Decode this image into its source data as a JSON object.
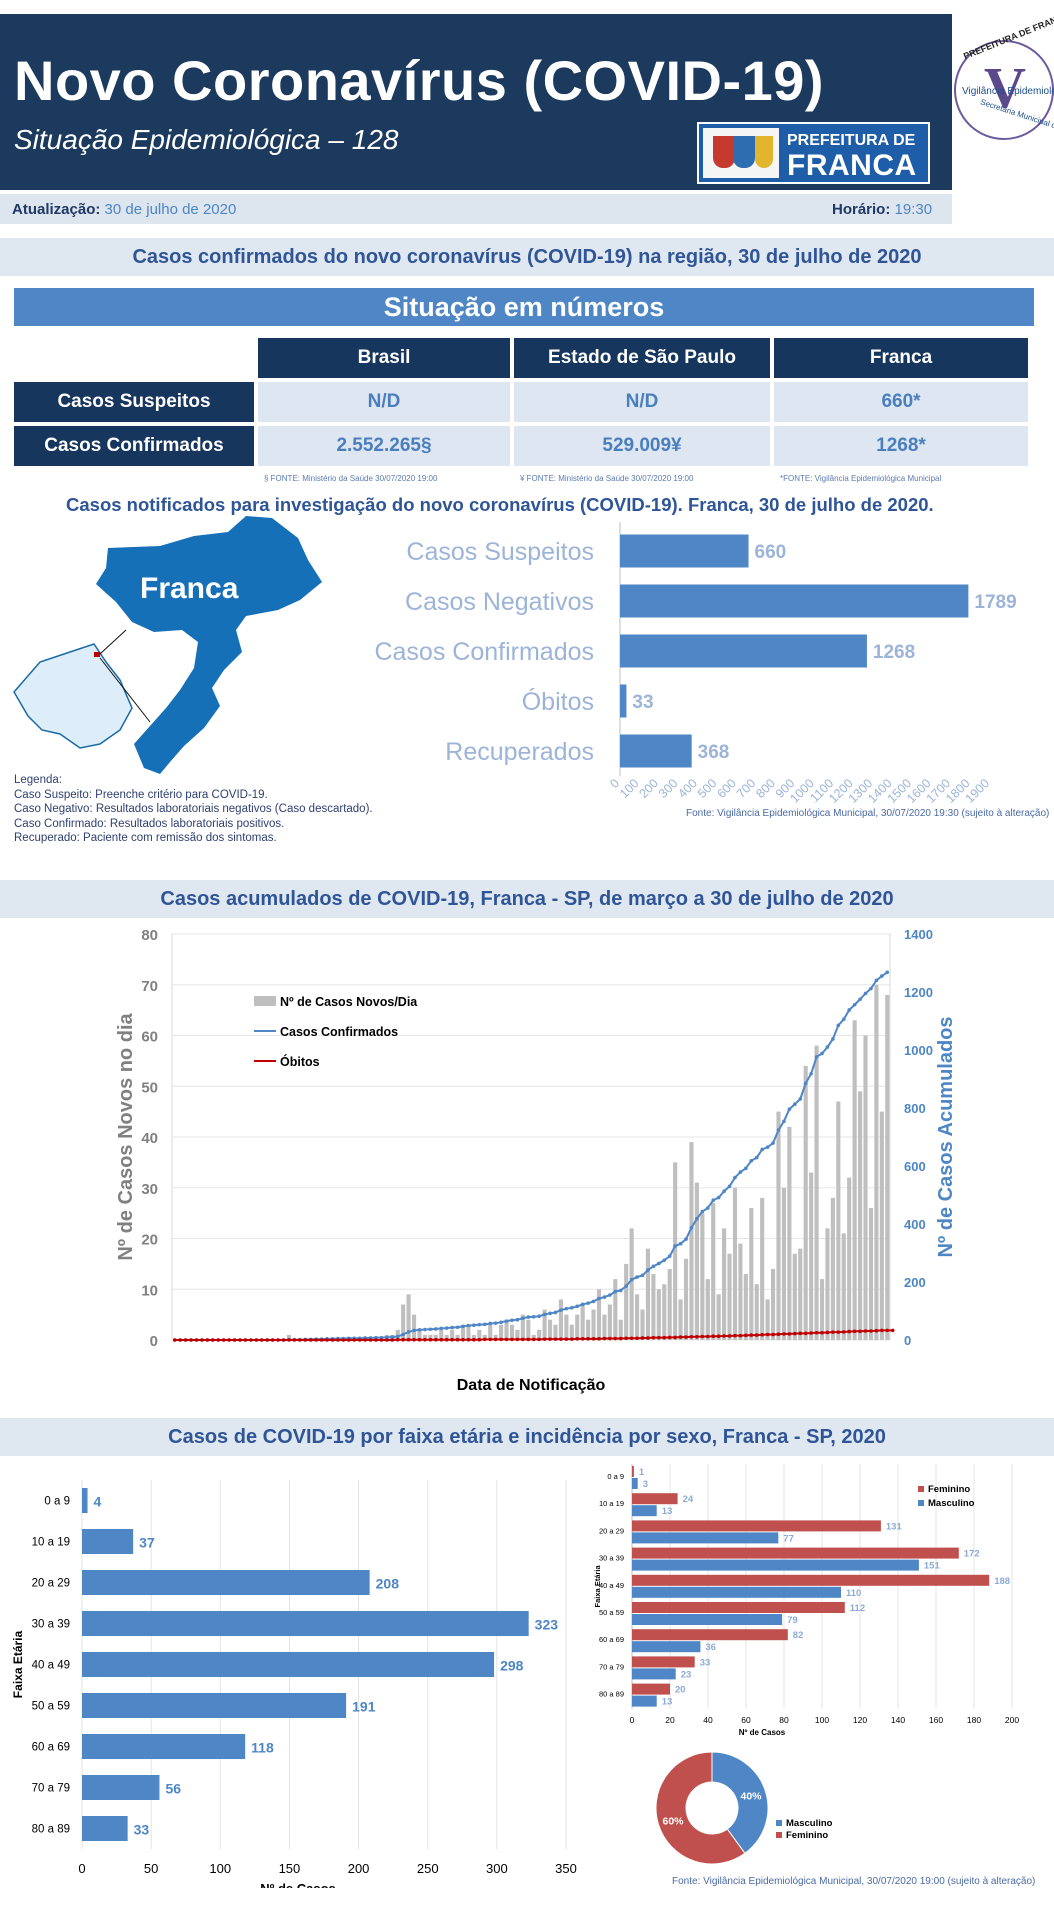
{
  "header": {
    "title": "Novo Coronavírus (COVID-19)",
    "subtitle": "Situação Epidemiológica – 128",
    "logo_text_1": "PREFEITURA DE",
    "logo_text_2": "FRANCA",
    "seal_top": "PREFEITURA DE FRANCA",
    "seal_mid": "Vigilância Epidemiológica",
    "seal_bottom": "Secretaria Municipal de Saúde"
  },
  "update": {
    "label": "Atualização:",
    "date": "30 de julho de 2020",
    "time_label": "Horário:",
    "time": "19:30"
  },
  "region_title": "Casos confirmados do novo coronavírus (COVID-19) na região, 30 de julho de 2020",
  "situation_title": "Situação em números",
  "table": {
    "columns": [
      "Brasil",
      "Estado de São Paulo",
      "Franca"
    ],
    "rows": [
      {
        "label": "Casos Suspeitos",
        "values": [
          "N/D",
          "N/D",
          "660*"
        ]
      },
      {
        "label": "Casos Confirmados",
        "values": [
          "2.552.265§",
          "529.009¥",
          "1268*"
        ]
      }
    ],
    "footnotes": [
      "§ FONTE: Ministério da Saúde 30/07/2020 19:00",
      "¥ FONTE: Ministério da Saúde 30/07/2020 19:00",
      "*FONTE: Vigilância Epidemiológica Municipal"
    ]
  },
  "notified": {
    "title": "Casos notificados para investigação do novo coronavírus (COVID-19). Franca, 30 de julho de 2020.",
    "map_label": "Franca",
    "legend": [
      "Legenda:",
      "Caso Suspeito: Preenche critério para COVID-19.",
      "Caso Negativo: Resultados laboratoriais negativos (Caso descartado).",
      "Caso Confirmado: Resultados laboratoriais positivos.",
      "Recuperado: Paciente com remissão dos sintomas."
    ],
    "source": "Fonte: Vigilância Epidemiológica Municipal, 30/07/2020 19:30  (sujeito à alteração)"
  },
  "accum_title": "Casos acumulados de COVID-19, Franca - SP, de março a 30 de julho de 2020",
  "age_title": "Casos de COVID-19 por faixa etária e incidência por sexo, Franca - SP, 2020",
  "age_source": "Fonte: Vigilância Epidemiológica Municipal, 30/07/2020 19:00 (sujeito à alteração)",
  "chart_data": [
    {
      "type": "bar",
      "orientation": "horizontal",
      "categories": [
        "Casos Suspeitos",
        "Casos Negativos",
        "Casos Confirmados",
        "Óbitos",
        "Recuperados"
      ],
      "values": [
        660,
        1789,
        1268,
        33,
        368
      ],
      "xlim": [
        0,
        1900
      ],
      "xticks": [
        0,
        100,
        200,
        300,
        400,
        500,
        600,
        700,
        800,
        900,
        1000,
        1100,
        1200,
        1300,
        1400,
        1500,
        1600,
        1700,
        1800,
        1900
      ],
      "color": "#4e86c6"
    },
    {
      "type": "bar",
      "combo": "bar+line",
      "xlabel": "Data de Notificação",
      "ylabel": "Nº de Casos Novos no dia",
      "y2label": "Nº de Casos Acumulados",
      "ylim": [
        0,
        80
      ],
      "yticks": [
        0,
        10,
        20,
        30,
        40,
        50,
        60,
        70,
        80
      ],
      "y2lim": [
        0,
        1400
      ],
      "y2ticks": [
        0,
        200,
        400,
        600,
        800,
        1000,
        1200,
        1400
      ],
      "legend_position": "top-left",
      "series": [
        {
          "name": "Nº de Casos Novos/Dia",
          "color": "#bfbfbf",
          "values": [
            0,
            0,
            0,
            0,
            0,
            0,
            0,
            0,
            0,
            0,
            0,
            0,
            0,
            0,
            0,
            0,
            0,
            0,
            0,
            0,
            0,
            1,
            0,
            0,
            0,
            0,
            0,
            0,
            0,
            0,
            0,
            0,
            0,
            0,
            0,
            0,
            0,
            0,
            0,
            1,
            1,
            2,
            7,
            9,
            5,
            2,
            1,
            1,
            1,
            2,
            1,
            2,
            1,
            3,
            3,
            1,
            2,
            1,
            3,
            1,
            3,
            4,
            3,
            2,
            5,
            4,
            1,
            2,
            6,
            4,
            3,
            8,
            5,
            3,
            5,
            7,
            4,
            6,
            10,
            5,
            7,
            12,
            4,
            15,
            22,
            9,
            6,
            18,
            13,
            10,
            11,
            14,
            35,
            8,
            16,
            39,
            31,
            25,
            12,
            27,
            9,
            22,
            17,
            30,
            19,
            13,
            26,
            11,
            28,
            8,
            14,
            45,
            30,
            42,
            17,
            18,
            54,
            33,
            58,
            12,
            22,
            28,
            47,
            21,
            32,
            63,
            49,
            60,
            26,
            70,
            45,
            68
          ]
        },
        {
          "name": "Casos Confirmados",
          "color": "#4e86c6",
          "values": [
            0,
            0,
            0,
            0,
            0,
            0,
            0,
            0,
            0,
            0,
            0,
            0,
            0,
            0,
            0,
            0,
            0,
            0,
            0,
            0,
            0,
            1,
            1,
            1,
            2,
            2,
            3,
            3,
            4,
            4,
            5,
            5,
            6,
            6,
            6,
            7,
            7,
            8,
            8,
            9,
            10,
            12,
            19,
            28,
            33,
            35,
            36,
            37,
            38,
            40,
            41,
            43,
            44,
            47,
            50,
            51,
            53,
            54,
            57,
            58,
            61,
            65,
            68,
            70,
            75,
            79,
            80,
            82,
            88,
            92,
            95,
            103,
            108,
            111,
            116,
            123,
            127,
            133,
            143,
            148,
            155,
            167,
            171,
            186,
            208,
            217,
            223,
            241,
            254,
            264,
            275,
            289,
            324,
            332,
            348,
            387,
            418,
            443,
            455,
            482,
            491,
            513,
            530,
            560,
            579,
            592,
            618,
            629,
            657,
            665,
            679,
            724,
            754,
            796,
            813,
            831,
            885,
            918,
            976,
            988,
            1010,
            1038,
            1085,
            1106,
            1138,
            1156,
            1175,
            1195,
            1212,
            1240,
            1255,
            1268
          ]
        },
        {
          "name": "Óbitos",
          "color": "#c00000",
          "values": [
            0,
            0,
            0,
            0,
            0,
            0,
            0,
            0,
            0,
            0,
            0,
            0,
            0,
            0,
            0,
            0,
            0,
            0,
            0,
            0,
            0,
            0,
            0,
            0,
            0,
            0,
            0,
            0,
            0,
            0,
            0,
            0,
            0,
            0,
            0,
            0,
            0,
            0,
            0,
            0,
            0,
            1,
            1,
            1,
            1,
            1,
            1,
            1,
            1,
            1,
            1,
            1,
            1,
            1,
            1,
            1,
            1,
            2,
            2,
            2,
            2,
            2,
            2,
            2,
            2,
            2,
            2,
            2,
            3,
            3,
            3,
            3,
            3,
            3,
            4,
            4,
            4,
            4,
            4,
            5,
            5,
            5,
            5,
            6,
            6,
            6,
            7,
            7,
            8,
            8,
            8,
            9,
            9,
            10,
            10,
            11,
            11,
            12,
            12,
            13,
            13,
            14,
            14,
            15,
            15,
            16,
            17,
            17,
            18,
            19,
            19,
            20,
            21,
            21,
            22,
            23,
            23,
            24,
            25,
            25,
            26,
            27,
            27,
            28,
            29,
            30,
            30,
            31,
            31,
            32,
            33,
            33,
            33
          ]
        }
      ]
    },
    {
      "type": "bar",
      "orientation": "horizontal",
      "xlabel": "Nº de Casos",
      "ylabel": "Faixa Etária",
      "categories": [
        "0 a 9",
        "10 a 19",
        "20 a 29",
        "30 a 39",
        "40 a 49",
        "50 a 59",
        "60  a 69",
        "70 a 79",
        "80 a 89"
      ],
      "values": [
        4,
        37,
        208,
        323,
        298,
        191,
        118,
        56,
        33
      ],
      "xlim": [
        0,
        350
      ],
      "xticks": [
        0,
        50,
        100,
        150,
        200,
        250,
        300,
        350
      ],
      "color": "#4e86c6"
    },
    {
      "type": "bar",
      "orientation": "horizontal",
      "xlabel": "Nº de Casos",
      "ylabel": "Faixa Etária",
      "legend_position": "top-right",
      "categories": [
        "0 a 9",
        "10 a 19",
        "20 a 29",
        "30 a 39",
        "40 a 49",
        "50 a 59",
        "60 a 69",
        "70 a 79",
        "80 a 89"
      ],
      "xlim": [
        0,
        200
      ],
      "xticks": [
        0,
        20,
        40,
        60,
        80,
        100,
        120,
        140,
        160,
        180,
        200
      ],
      "series": [
        {
          "name": "Feminino",
          "color": "#c0504d",
          "values": [
            1,
            24,
            131,
            172,
            188,
            112,
            82,
            33,
            20
          ]
        },
        {
          "name": "Masculino",
          "color": "#4e86c6",
          "values": [
            3,
            13,
            77,
            151,
            110,
            79,
            36,
            23,
            13
          ]
        }
      ]
    },
    {
      "type": "pie",
      "categories": [
        "Masculino",
        "Feminino"
      ],
      "values": [
        40,
        60
      ],
      "labels": [
        "40%",
        "60%"
      ],
      "colors": [
        "#4e86c6",
        "#c0504d"
      ],
      "legend_position": "right"
    }
  ]
}
